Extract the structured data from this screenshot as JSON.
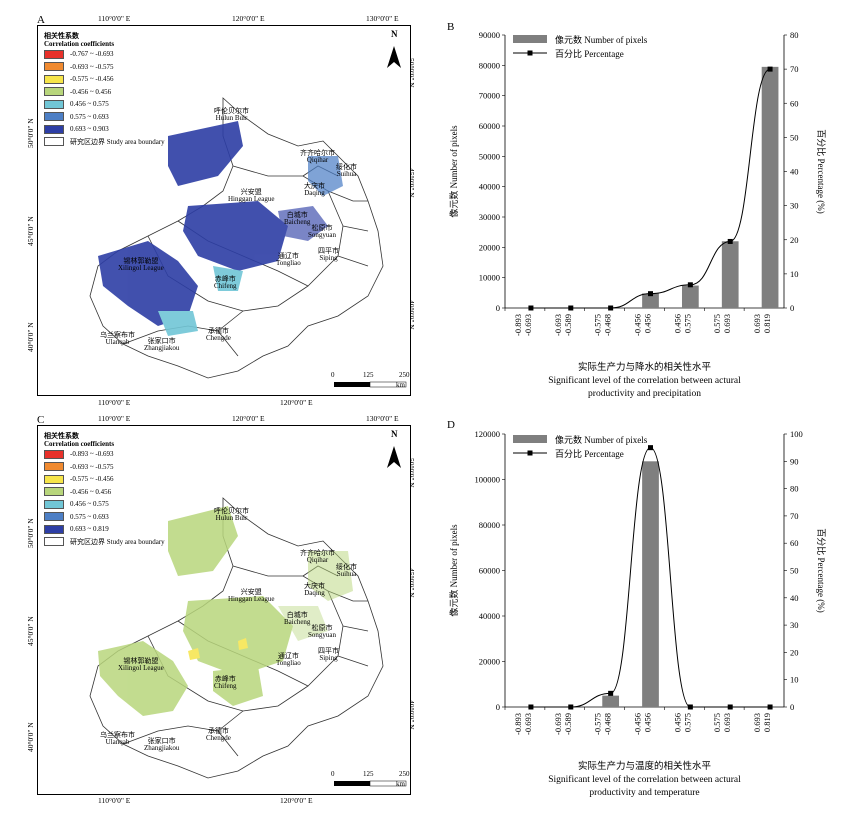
{
  "panels": [
    {
      "letter": "A",
      "legend_title_cn": "相关性系数",
      "legend_title_en": "Correlation coefficients",
      "legend_items": [
        {
          "label": "-0.767 ~ -0.693",
          "color": "#e8312a"
        },
        {
          "label": "-0.693 ~ -0.575",
          "color": "#f08a30"
        },
        {
          "label": "-0.575 ~ -0.456",
          "color": "#f6e54a"
        },
        {
          "label": "-0.456 ~ 0.456",
          "color": "#b8d67c"
        },
        {
          "label": "0.456 ~ 0.575",
          "color": "#71c6d6"
        },
        {
          "label": "0.575 ~ 0.693",
          "color": "#4d7fc5"
        },
        {
          "label": "0.693 ~ 0.903",
          "color": "#2d3ea5"
        },
        {
          "label": "研究区边界 Study area boundary",
          "color": "#ffffff"
        }
      ],
      "top_ticks": [
        "110°0'0\" E",
        "120°0'0\" E",
        "130°0'0\" E"
      ],
      "bottom_ticks": [
        "110°0'0\" E",
        "120°0'0\" E"
      ],
      "left_ticks": [
        "50°0'0\" N",
        "45°0'0\" N",
        "40°0'0\" N"
      ],
      "right_ticks": [
        "50°0'0\" N",
        "45°0'0\" N",
        "40°0'0\" N"
      ],
      "places": [
        {
          "cn": "呼伦贝尔市",
          "en": "Hulun Buir"
        },
        {
          "cn": "齐齐哈尔市",
          "en": "Qiqihar"
        },
        {
          "cn": "绥化市",
          "en": "Suihua"
        },
        {
          "cn": "大庆市",
          "en": "Daqing"
        },
        {
          "cn": "兴安盟",
          "en": "Hinggan League"
        },
        {
          "cn": "白城市",
          "en": "Baicheng"
        },
        {
          "cn": "松原市",
          "en": "Songyuan"
        },
        {
          "cn": "锡林郭勒盟",
          "en": "Xilingol League"
        },
        {
          "cn": "通辽市",
          "en": "Tongliao"
        },
        {
          "cn": "四平市",
          "en": "Siping"
        },
        {
          "cn": "赤峰市",
          "en": "Chifeng"
        },
        {
          "cn": "乌兰察布市",
          "en": "Ulanqab"
        },
        {
          "cn": "张家口市",
          "en": "Zhangjiakou"
        },
        {
          "cn": "承德市",
          "en": "Chengde"
        }
      ],
      "north": "N",
      "scale_labels": [
        "0",
        "125",
        "250"
      ],
      "scale_unit": "km"
    },
    {
      "letter": "C",
      "legend_title_cn": "相关性系数",
      "legend_title_en": "Correlation coefficients",
      "legend_items": [
        {
          "label": "-0.893 ~ -0.693",
          "color": "#e8312a"
        },
        {
          "label": "-0.693 ~ -0.575",
          "color": "#f08a30"
        },
        {
          "label": "-0.575 ~ -0.456",
          "color": "#f6e54a"
        },
        {
          "label": "-0.456 ~ 0.456",
          "color": "#b8d67c"
        },
        {
          "label": "0.456 ~ 0.575",
          "color": "#71c6d6"
        },
        {
          "label": "0.575 ~ 0.693",
          "color": "#4d7fc5"
        },
        {
          "label": "0.693 ~ 0.819",
          "color": "#2d3ea5"
        },
        {
          "label": "研究区边界 Study area boundary",
          "color": "#ffffff"
        }
      ],
      "top_ticks": [
        "110°0'0\" E",
        "120°0'0\" E",
        "130°0'0\" E"
      ],
      "bottom_ticks": [
        "110°0'0\" E",
        "120°0'0\" E"
      ],
      "left_ticks": [
        "50°0'0\" N",
        "45°0'0\" N",
        "40°0'0\" N"
      ],
      "right_ticks": [
        "50°0'0\" N",
        "45°0'0\" N",
        "40°0'0\" N"
      ],
      "places": [
        {
          "cn": "呼伦贝尔市",
          "en": "Hulun Buir"
        },
        {
          "cn": "齐齐哈尔市",
          "en": "Qiqihar"
        },
        {
          "cn": "绥化市",
          "en": "Suihua"
        },
        {
          "cn": "大庆市",
          "en": "Daqing"
        },
        {
          "cn": "兴安盟",
          "en": "Hinggan League"
        },
        {
          "cn": "白城市",
          "en": "Baicheng"
        },
        {
          "cn": "松原市",
          "en": "Songyuan"
        },
        {
          "cn": "锡林郭勒盟",
          "en": "Xilingol League"
        },
        {
          "cn": "通辽市",
          "en": "Tongliao"
        },
        {
          "cn": "四平市",
          "en": "Siping"
        },
        {
          "cn": "赤峰市",
          "en": "Chifeng"
        },
        {
          "cn": "乌兰察布市",
          "en": "Ulanqab"
        },
        {
          "cn": "张家口市",
          "en": "Zhangjiakou"
        },
        {
          "cn": "承德市",
          "en": "Chengde"
        }
      ],
      "north": "N",
      "scale_labels": [
        "0",
        "125",
        "250"
      ],
      "scale_unit": "km"
    }
  ],
  "chart_data": [
    {
      "panel": "B",
      "type": "bar",
      "categories": [
        "-0.893 ~ -0.693",
        "-0.693 ~ -0.589",
        "-0.575 ~ -0.468",
        "-0.456 ~ 0.456",
        "0.456 ~ 0.575",
        "0.575 ~ 0.693",
        "0.693 ~ 0.819"
      ],
      "category_label_tops": [
        "-0.893",
        "-0.693",
        "-0.575",
        "-0.456",
        "0.456",
        "0.575",
        "0.693"
      ],
      "category_label_bottoms": [
        "-0.693",
        "-0.589",
        "-0.468",
        "0.456",
        "0.575",
        "0.693",
        "0.819"
      ],
      "points_x_labels": [
        "-0.893",
        "-0.693",
        "-0.589",
        "-0.575",
        "-0.468",
        "-0.456",
        "0.456",
        "0.575",
        "0.693",
        "0.819"
      ],
      "series": [
        {
          "name": "像元数 Number of pixels",
          "axis": "left",
          "kind": "bar",
          "values": [
            0,
            0,
            0,
            4800,
            7400,
            22000,
            79500
          ]
        },
        {
          "name": "百分比 Percentage",
          "axis": "right",
          "kind": "line",
          "values": [
            0,
            0,
            0,
            4.2,
            6.8,
            19.5,
            70
          ]
        }
      ],
      "ylabel": "像元数 Number of pixels",
      "y2label": "百分比 Percentage (%)",
      "xlabel_cn": "实际生产力与降水的相关性水平",
      "xlabel_en1": "Significant level of the correlation between  actural",
      "xlabel_en2": "productivity and precipitation",
      "ylim": [
        0,
        90000
      ],
      "y2lim": [
        0,
        80
      ],
      "yticks": [
        0,
        10000,
        20000,
        30000,
        40000,
        50000,
        60000,
        70000,
        80000,
        90000
      ],
      "y2ticks": [
        0,
        10,
        20,
        30,
        40,
        50,
        60,
        70,
        80
      ],
      "legend": "top-left",
      "bar_color": "#7f7f7f"
    },
    {
      "panel": "D",
      "type": "bar",
      "categories": [
        "-0.893 ~ -0.693",
        "-0.693 ~ -0.589",
        "-0.575 ~ -0.468",
        "-0.456 ~ 0.456",
        "0.456 ~ 0.575",
        "0.575 ~ 0.693",
        "0.693 ~ 0.819"
      ],
      "category_label_tops": [
        "-0.893",
        "-0.693",
        "-0.575",
        "-0.456",
        "0.456",
        "0.575",
        "0.693"
      ],
      "category_label_bottoms": [
        "-0.693",
        "-0.589",
        "-0.468",
        "0.456",
        "0.575",
        "0.693",
        "0.819"
      ],
      "series": [
        {
          "name": "像元数 Number of pixels",
          "axis": "left",
          "kind": "bar",
          "values": [
            0,
            0,
            5000,
            108000,
            0,
            0,
            0
          ]
        },
        {
          "name": "百分比 Percentage",
          "axis": "right",
          "kind": "line",
          "values": [
            0,
            0,
            5,
            95,
            0,
            0,
            0
          ]
        }
      ],
      "ylabel": "像元数 Number of pixels",
      "y2label": "百分比 Percentage (%)",
      "xlabel_cn": "实际生产力与温度的相关性水平",
      "xlabel_en1": "Significant level of the correlation between actural",
      "xlabel_en2": "productivity and temperature",
      "ylim": [
        0,
        120000
      ],
      "y2lim": [
        0,
        100
      ],
      "yticks": [
        0,
        20000,
        40000,
        60000,
        80000,
        100000,
        120000
      ],
      "y2ticks": [
        0,
        10,
        20,
        30,
        40,
        50,
        60,
        70,
        80,
        90,
        100
      ],
      "legend": "top-left",
      "bar_color": "#7f7f7f"
    }
  ]
}
